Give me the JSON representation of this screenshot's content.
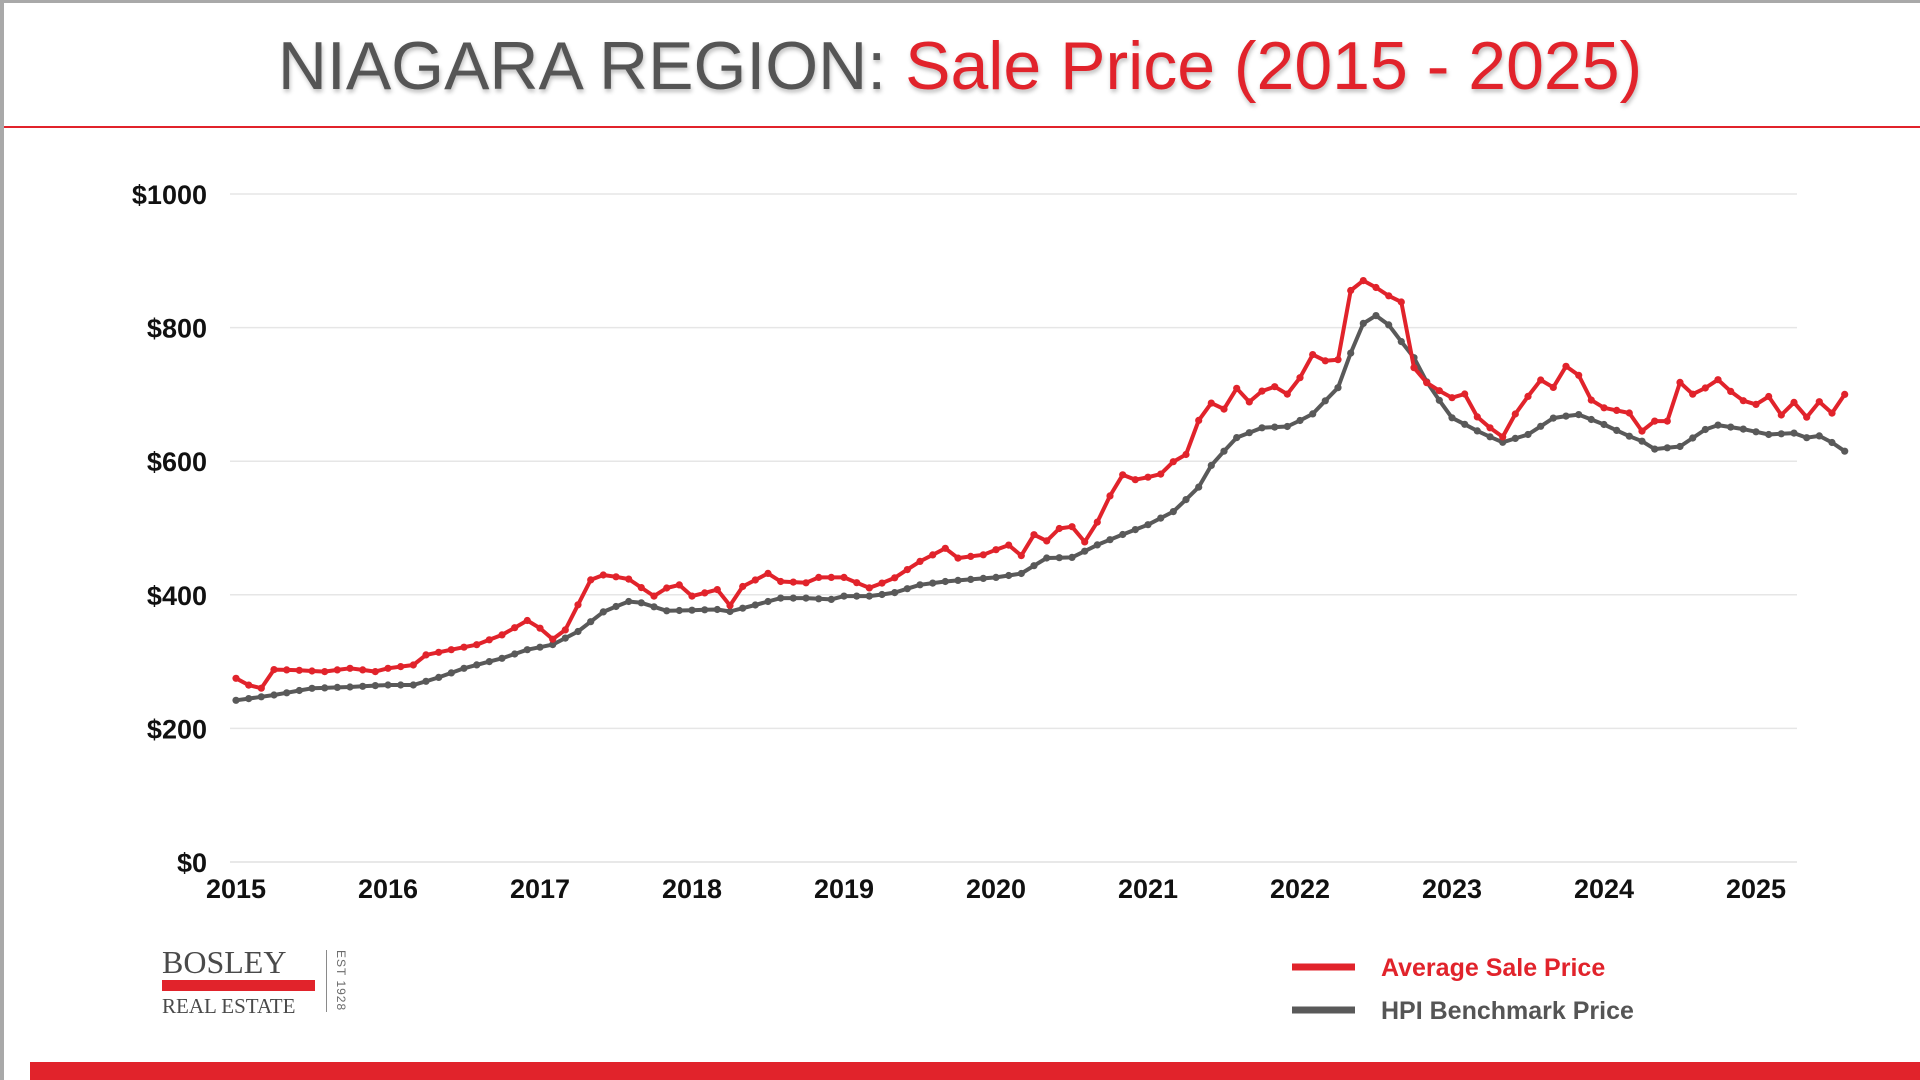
{
  "title": {
    "region": "NIAGARA REGION:",
    "subject": "Sale Price (2015 - 2025)"
  },
  "logo": {
    "brand": "BOSLEY",
    "sub": "REAL ESTATE",
    "est": "EST 1928"
  },
  "colors": {
    "accent": "#e1232b",
    "series_avg": "#e1232b",
    "series_hpi": "#595959",
    "grid": "#e6e6e6",
    "title_gray": "#555555"
  },
  "chart_data": {
    "type": "line",
    "title": "",
    "xlabel": "",
    "ylabel": "",
    "xlim": [
      2015.0,
      2025.33
    ],
    "ylim": [
      0,
      1000
    ],
    "yticks": [
      0,
      200,
      400,
      600,
      800,
      1000
    ],
    "ytick_labels": [
      "$0",
      "$200",
      "$400",
      "$600",
      "$800",
      "$1000"
    ],
    "xticks": [
      2015,
      2016,
      2017,
      2018,
      2019,
      2020,
      2021,
      2022,
      2023,
      2024,
      2025
    ],
    "xtick_labels": [
      "2015",
      "2016",
      "2017",
      "2018",
      "2019",
      "2020",
      "2021",
      "2022",
      "2023",
      "2024",
      "2025"
    ],
    "grid": "horizontal",
    "legend_position": "bottom-right",
    "markers": "small dots",
    "series": [
      {
        "name": "Average Sale Price",
        "key": "avg",
        "anchors": [
          [
            2015.0,
            275
          ],
          [
            2015.08,
            265
          ],
          [
            2015.17,
            260
          ],
          [
            2015.25,
            288
          ],
          [
            2015.42,
            287
          ],
          [
            2015.58,
            285
          ],
          [
            2015.75,
            290
          ],
          [
            2015.92,
            285
          ],
          [
            2016.0,
            290
          ],
          [
            2016.17,
            295
          ],
          [
            2016.25,
            310
          ],
          [
            2016.42,
            318
          ],
          [
            2016.58,
            325
          ],
          [
            2016.75,
            340
          ],
          [
            2016.92,
            362
          ],
          [
            2017.0,
            350
          ],
          [
            2017.08,
            333
          ],
          [
            2017.17,
            348
          ],
          [
            2017.25,
            385
          ],
          [
            2017.33,
            422
          ],
          [
            2017.42,
            430
          ],
          [
            2017.58,
            424
          ],
          [
            2017.75,
            398
          ],
          [
            2017.83,
            410
          ],
          [
            2017.92,
            415
          ],
          [
            2018.0,
            398
          ],
          [
            2018.17,
            408
          ],
          [
            2018.25,
            384
          ],
          [
            2018.33,
            412
          ],
          [
            2018.5,
            432
          ],
          [
            2018.58,
            420
          ],
          [
            2018.75,
            418
          ],
          [
            2018.83,
            426
          ],
          [
            2019.0,
            426
          ],
          [
            2019.17,
            410
          ],
          [
            2019.33,
            425
          ],
          [
            2019.5,
            450
          ],
          [
            2019.67,
            470
          ],
          [
            2019.75,
            455
          ],
          [
            2019.92,
            460
          ],
          [
            2020.08,
            475
          ],
          [
            2020.17,
            458
          ],
          [
            2020.25,
            490
          ],
          [
            2020.33,
            480
          ],
          [
            2020.42,
            500
          ],
          [
            2020.5,
            502
          ],
          [
            2020.58,
            478
          ],
          [
            2020.67,
            510
          ],
          [
            2020.75,
            548
          ],
          [
            2020.83,
            580
          ],
          [
            2020.92,
            572
          ],
          [
            2021.08,
            580
          ],
          [
            2021.17,
            600
          ],
          [
            2021.25,
            610
          ],
          [
            2021.33,
            660
          ],
          [
            2021.42,
            688
          ],
          [
            2021.5,
            678
          ],
          [
            2021.58,
            710
          ],
          [
            2021.67,
            688
          ],
          [
            2021.75,
            705
          ],
          [
            2021.83,
            712
          ],
          [
            2021.92,
            700
          ],
          [
            2022.0,
            725
          ],
          [
            2022.08,
            760
          ],
          [
            2022.17,
            750
          ],
          [
            2022.25,
            752
          ],
          [
            2022.33,
            855
          ],
          [
            2022.42,
            871
          ],
          [
            2022.5,
            860
          ],
          [
            2022.58,
            848
          ],
          [
            2022.67,
            838
          ],
          [
            2022.75,
            740
          ],
          [
            2022.83,
            718
          ],
          [
            2022.92,
            705
          ],
          [
            2023.0,
            695
          ],
          [
            2023.08,
            702
          ],
          [
            2023.17,
            665
          ],
          [
            2023.33,
            635
          ],
          [
            2023.42,
            672
          ],
          [
            2023.58,
            722
          ],
          [
            2023.67,
            710
          ],
          [
            2023.75,
            742
          ],
          [
            2023.83,
            730
          ],
          [
            2023.92,
            690
          ],
          [
            2024.0,
            680
          ],
          [
            2024.17,
            672
          ],
          [
            2024.25,
            645
          ],
          [
            2024.33,
            660
          ],
          [
            2024.42,
            660
          ],
          [
            2024.5,
            718
          ],
          [
            2024.58,
            700
          ],
          [
            2024.67,
            710
          ],
          [
            2024.75,
            722
          ],
          [
            2024.83,
            705
          ],
          [
            2024.92,
            690
          ],
          [
            2025.0,
            685
          ],
          [
            2025.08,
            698
          ],
          [
            2025.17,
            668
          ],
          [
            2025.25,
            688
          ],
          [
            2025.33,
            665
          ],
          [
            2025.42,
            690
          ],
          [
            2025.5,
            672
          ],
          [
            2025.58,
            700
          ]
        ]
      },
      {
        "name": "HPI Benchmark Price",
        "key": "hpi",
        "anchors": [
          [
            2015.0,
            242
          ],
          [
            2015.25,
            250
          ],
          [
            2015.5,
            260
          ],
          [
            2015.75,
            262
          ],
          [
            2016.0,
            265
          ],
          [
            2016.17,
            265
          ],
          [
            2016.33,
            276
          ],
          [
            2016.5,
            290
          ],
          [
            2016.75,
            305
          ],
          [
            2016.92,
            318
          ],
          [
            2017.08,
            325
          ],
          [
            2017.25,
            345
          ],
          [
            2017.42,
            375
          ],
          [
            2017.58,
            390
          ],
          [
            2017.67,
            388
          ],
          [
            2017.83,
            376
          ],
          [
            2018.0,
            377
          ],
          [
            2018.17,
            378
          ],
          [
            2018.25,
            375
          ],
          [
            2018.42,
            385
          ],
          [
            2018.58,
            395
          ],
          [
            2018.75,
            395
          ],
          [
            2018.92,
            393
          ],
          [
            2019.0,
            398
          ],
          [
            2019.17,
            398
          ],
          [
            2019.33,
            403
          ],
          [
            2019.5,
            415
          ],
          [
            2019.67,
            420
          ],
          [
            2019.83,
            423
          ],
          [
            2020.0,
            426
          ],
          [
            2020.17,
            432
          ],
          [
            2020.33,
            455
          ],
          [
            2020.5,
            456
          ],
          [
            2020.67,
            475
          ],
          [
            2020.83,
            490
          ],
          [
            2021.0,
            505
          ],
          [
            2021.17,
            525
          ],
          [
            2021.33,
            560
          ],
          [
            2021.42,
            595
          ],
          [
            2021.58,
            635
          ],
          [
            2021.75,
            650
          ],
          [
            2021.92,
            652
          ],
          [
            2022.08,
            670
          ],
          [
            2022.25,
            710
          ],
          [
            2022.33,
            760
          ],
          [
            2022.42,
            808
          ],
          [
            2022.5,
            818
          ],
          [
            2022.58,
            805
          ],
          [
            2022.67,
            778
          ],
          [
            2022.75,
            755
          ],
          [
            2022.83,
            720
          ],
          [
            2022.92,
            690
          ],
          [
            2023.0,
            665
          ],
          [
            2023.17,
            645
          ],
          [
            2023.33,
            628
          ],
          [
            2023.5,
            640
          ],
          [
            2023.67,
            665
          ],
          [
            2023.83,
            670
          ],
          [
            2024.0,
            655
          ],
          [
            2024.17,
            637
          ],
          [
            2024.25,
            630
          ],
          [
            2024.33,
            618
          ],
          [
            2024.5,
            622
          ],
          [
            2024.67,
            648
          ],
          [
            2024.75,
            654
          ],
          [
            2024.92,
            648
          ],
          [
            2025.08,
            640
          ],
          [
            2025.25,
            642
          ],
          [
            2025.33,
            635
          ],
          [
            2025.42,
            638
          ],
          [
            2025.5,
            628
          ],
          [
            2025.58,
            615
          ]
        ]
      }
    ]
  }
}
